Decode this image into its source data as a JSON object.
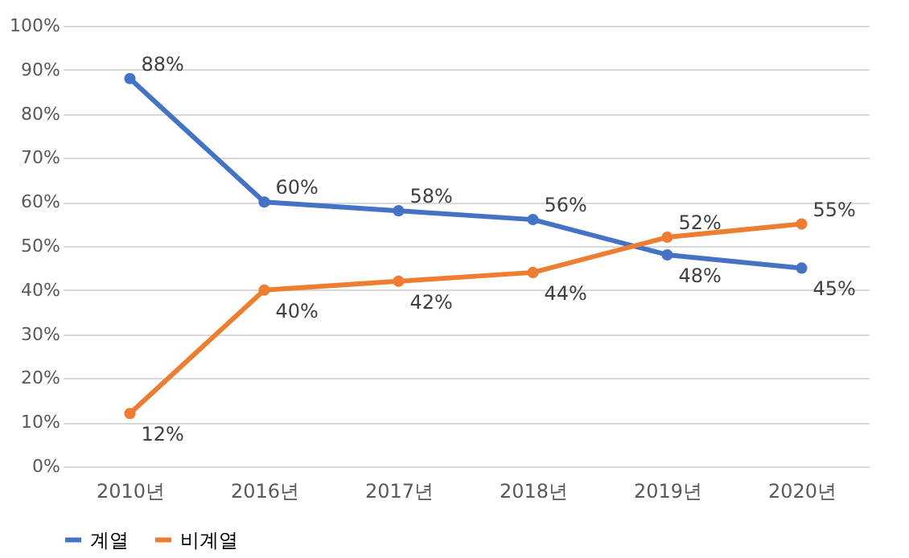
{
  "chart_data": {
    "type": "line",
    "categories": [
      "2010년",
      "2016년",
      "2017년",
      "2018년",
      "2019년",
      "2020년"
    ],
    "series": [
      {
        "name": "계열",
        "color": "#4472c4",
        "values": [
          88,
          60,
          58,
          56,
          48,
          45
        ],
        "value_labels": [
          "88%",
          "60%",
          "58%",
          "56%",
          "48%",
          "45%"
        ]
      },
      {
        "name": "비계열",
        "color": "#ed7d31",
        "values": [
          12,
          40,
          42,
          44,
          52,
          55
        ],
        "value_labels": [
          "12%",
          "40%",
          "42%",
          "44%",
          "52%",
          "55%"
        ]
      }
    ],
    "ylim": [
      0,
      100
    ],
    "yticks": [
      {
        "value": 0,
        "label": "0%"
      },
      {
        "value": 10,
        "label": "10%"
      },
      {
        "value": 20,
        "label": "20%"
      },
      {
        "value": 30,
        "label": "30%"
      },
      {
        "value": 40,
        "label": "40%"
      },
      {
        "value": 50,
        "label": "50%"
      },
      {
        "value": 60,
        "label": "60%"
      },
      {
        "value": 70,
        "label": "70%"
      },
      {
        "value": 80,
        "label": "80%"
      },
      {
        "value": 90,
        "label": "90%"
      },
      {
        "value": 100,
        "label": "100%"
      }
    ],
    "grid": "y",
    "legend": "bottom",
    "marker": "circle",
    "line_style": "solid"
  }
}
